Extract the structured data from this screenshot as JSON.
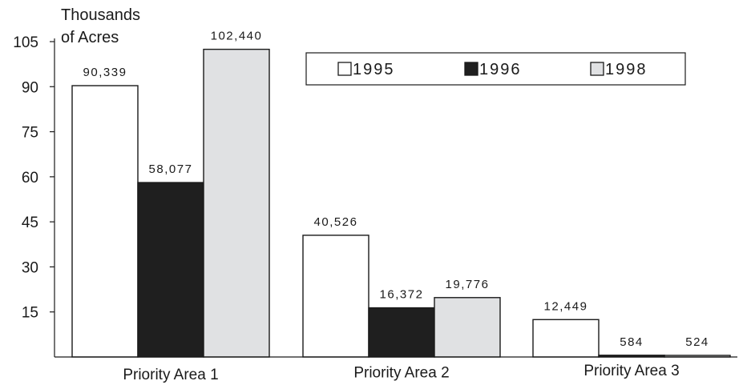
{
  "chart_data": {
    "type": "bar",
    "ylabel_line1": "Thousands",
    "ylabel_line2": "of Acres",
    "categories": [
      "Priority Area 1",
      "Priority Area 2",
      "Priority Area 3"
    ],
    "series": [
      {
        "name": "1995",
        "color": "#ffffff",
        "values": [
          90339,
          40526,
          12449
        ],
        "labels": [
          "90,339",
          "40,526",
          "12,449"
        ]
      },
      {
        "name": "1996",
        "color": "#1f1f1f",
        "values": [
          58077,
          16372,
          584
        ],
        "labels": [
          "58,077",
          "16,372",
          "584"
        ]
      },
      {
        "name": "1998",
        "color": "#e0e1e3",
        "values": [
          102440,
          19776,
          524
        ],
        "labels": [
          "102,440",
          "19,776",
          "524"
        ]
      }
    ],
    "yticks": [
      15,
      30,
      45,
      60,
      75,
      90,
      105
    ],
    "ylim": [
      0,
      105
    ],
    "unit_multiplier": 1000,
    "legend_position": "top-right",
    "grid": false
  }
}
